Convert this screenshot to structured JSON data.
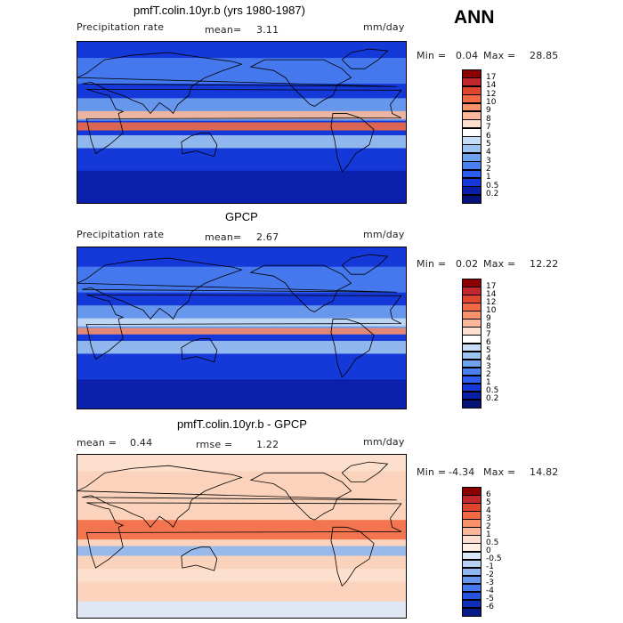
{
  "season": "ANN",
  "panels": [
    {
      "title": "pmfT.colin.10yr.b (yrs 1980-1987)",
      "left_label": "Precipitation rate",
      "mid_label": "mean=",
      "mid_value": "3.11",
      "units": "mm/day",
      "min_label": "Min =",
      "min_value": "0.04",
      "max_label": "Max =",
      "max_value": "28.85",
      "colorbar": {
        "levels": [
          "17",
          "14",
          "12",
          "10",
          "9",
          "8",
          "7",
          "6",
          "5",
          "4",
          "3",
          "2",
          "1",
          "0.5",
          "0.2"
        ],
        "colors": [
          "#8b0000",
          "#c1272d",
          "#e0452e",
          "#f26a44",
          "#f7926b",
          "#fbb89a",
          "#fde0cf",
          "#ffffff",
          "#c7dcf5",
          "#9cc4f0",
          "#6fa2ee",
          "#4a7ff0",
          "#2a5df0",
          "#1538d8",
          "#0a1fa8",
          "#06127a"
        ]
      },
      "field": "model"
    },
    {
      "title": "GPCP",
      "left_label": "Precipitation rate",
      "mid_label": "mean=",
      "mid_value": "2.67",
      "units": "mm/day",
      "min_label": "Min =",
      "min_value": "0.02",
      "max_label": "Max =",
      "max_value": "12.22",
      "colorbar": {
        "levels": [
          "17",
          "14",
          "12",
          "10",
          "9",
          "8",
          "7",
          "6",
          "5",
          "4",
          "3",
          "2",
          "1",
          "0.5",
          "0.2"
        ],
        "colors": [
          "#8b0000",
          "#c1272d",
          "#e0452e",
          "#f26a44",
          "#f7926b",
          "#fbb89a",
          "#fde0cf",
          "#ffffff",
          "#c7dcf5",
          "#9cc4f0",
          "#6fa2ee",
          "#4a7ff0",
          "#2a5df0",
          "#1538d8",
          "#0a1fa8",
          "#06127a"
        ]
      },
      "field": "obs"
    },
    {
      "title": "pmfT.colin.10yr.b - GPCP",
      "left_label": "mean =",
      "left_value": "0.44",
      "mid_label": "rmse =",
      "mid_value": "1.22",
      "units": "mm/day",
      "min_label": "Min =",
      "min_value": "-4.34",
      "max_label": "Max =",
      "max_value": "14.82",
      "colorbar": {
        "levels": [
          "6",
          "5",
          "4",
          "3",
          "2",
          "1",
          "0.5",
          "0",
          "-0.5",
          "-1",
          "-2",
          "-3",
          "-4",
          "-5",
          "-6"
        ],
        "colors": [
          "#8b0000",
          "#c1272d",
          "#e0452e",
          "#f26a44",
          "#f7926b",
          "#fbb89a",
          "#fde0cf",
          "#fff0e6",
          "#dce9f8",
          "#b7d2f3",
          "#8fb6ef",
          "#6a97ee",
          "#4677ee",
          "#2553e0",
          "#0f2fb8",
          "#071a86"
        ]
      },
      "field": "diff"
    }
  ]
}
